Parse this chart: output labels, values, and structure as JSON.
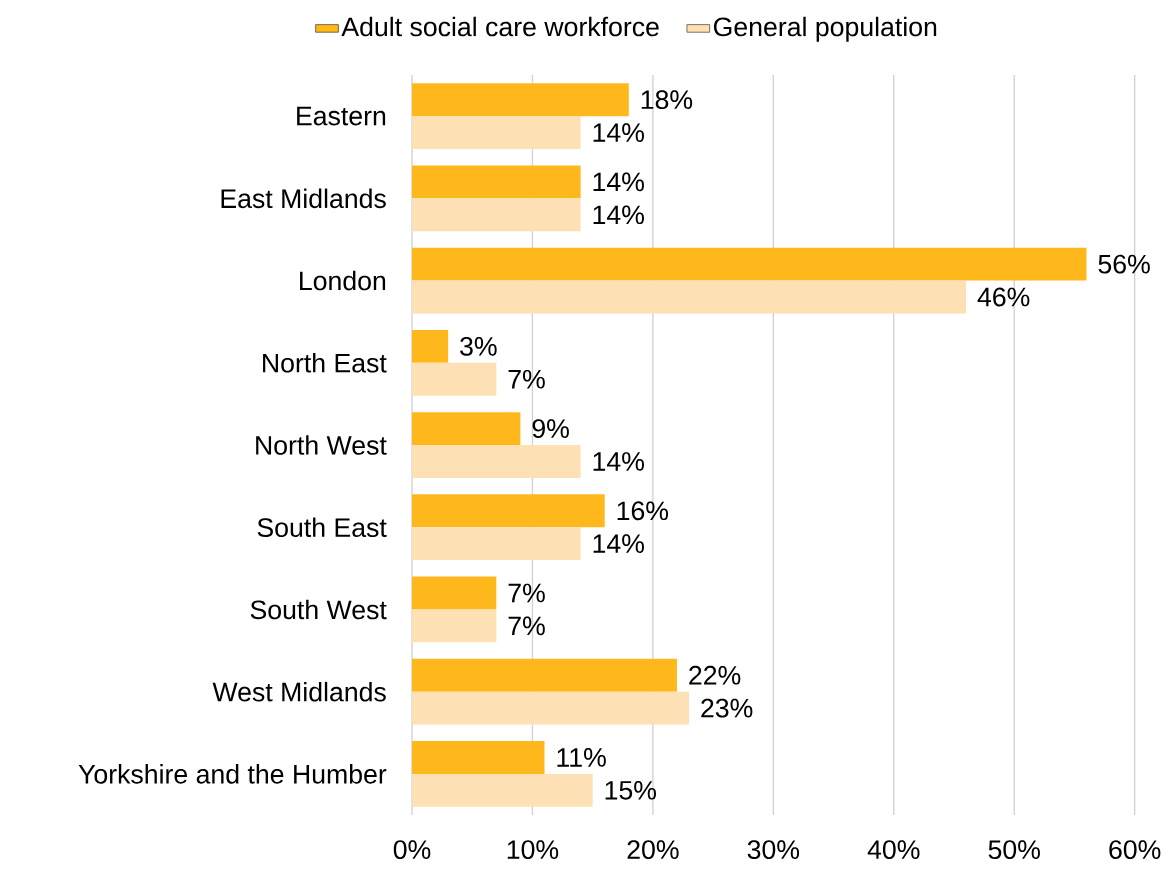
{
  "chart_data": {
    "type": "bar",
    "orientation": "horizontal",
    "categories": [
      "Eastern",
      "East Midlands",
      "London",
      "North East",
      "North West",
      "South East",
      "South West",
      "West Midlands",
      "Yorkshire and the Humber"
    ],
    "series": [
      {
        "name": "Adult social care workforce",
        "color": "#ffb81c",
        "values": [
          18,
          14,
          56,
          3,
          9,
          16,
          7,
          22,
          11
        ],
        "value_labels": [
          "18%",
          "14%",
          "56%",
          "3%",
          "9%",
          "16%",
          "7%",
          "22%",
          "11%"
        ]
      },
      {
        "name": "General population",
        "color": "#fde0b3",
        "values": [
          14,
          14,
          46,
          7,
          14,
          14,
          7,
          23,
          15
        ],
        "value_labels": [
          "14%",
          "14%",
          "46%",
          "7%",
          "14%",
          "14%",
          "7%",
          "23%",
          "15%"
        ]
      }
    ],
    "xlim": [
      0,
      60
    ],
    "xticks": [
      {
        "value": 0,
        "label": "0%"
      },
      {
        "value": 10,
        "label": "10%"
      },
      {
        "value": 20,
        "label": "20%"
      },
      {
        "value": 30,
        "label": "30%"
      },
      {
        "value": 40,
        "label": "40%"
      },
      {
        "value": 50,
        "label": "50%"
      },
      {
        "value": 60,
        "label": "60%"
      }
    ],
    "grid": "x",
    "legend": "top"
  }
}
